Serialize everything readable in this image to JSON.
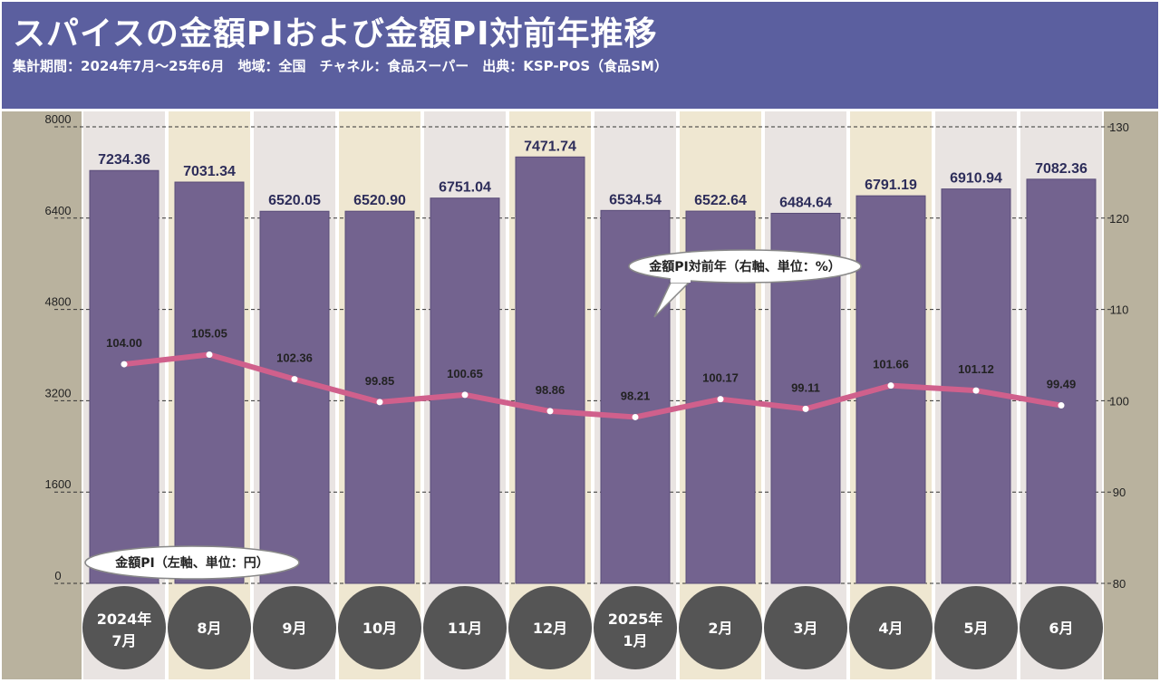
{
  "header": {
    "title": "スパイスの金額PIおよび金額PI対前年推移",
    "subtitle": "集計期間：2024年7月〜25年6月　地域：全国　チャネル：食品スーパー　出典：KSP-POS（食品SM）"
  },
  "colors": {
    "header_bg": "#5b5f9f",
    "bar": "#73638f",
    "bar_stroke": "#5a4c78",
    "line": "#d0608c",
    "band_light": "#e9e4e2",
    "band_warm": "#efe7d1",
    "side_panel": "#b9b29e",
    "circle": "#555555"
  },
  "chart_data": {
    "type": "bar+line",
    "categories": [
      {
        "line1": "2024年",
        "line2": "7月"
      },
      {
        "line1": "8月"
      },
      {
        "line1": "9月"
      },
      {
        "line1": "10月"
      },
      {
        "line1": "11月"
      },
      {
        "line1": "12月"
      },
      {
        "line1": "2025年",
        "line2": "1月"
      },
      {
        "line1": "2月"
      },
      {
        "line1": "3月"
      },
      {
        "line1": "4月"
      },
      {
        "line1": "5月"
      },
      {
        "line1": "6月"
      }
    ],
    "series": [
      {
        "name": "金額PI（左軸、単位：円）",
        "type": "bar",
        "axis": "left",
        "values": [
          7234.36,
          7031.34,
          6520.05,
          6520.9,
          6751.04,
          7471.74,
          6534.54,
          6522.64,
          6484.64,
          6791.19,
          6910.94,
          7082.36
        ],
        "labels": [
          "7234.36",
          "7031.34",
          "6520.05",
          "6520.90",
          "6751.04",
          "7471.74",
          "6534.54",
          "6522.64",
          "6484.64",
          "6791.19",
          "6910.94",
          "7082.36"
        ]
      },
      {
        "name": "金額PI対前年（右軸、単位：%）",
        "type": "line",
        "axis": "right",
        "values": [
          104.0,
          105.05,
          102.36,
          99.85,
          100.65,
          98.86,
          98.21,
          100.17,
          99.11,
          101.66,
          101.12,
          99.49
        ],
        "labels": [
          "104.00",
          "105.05",
          "102.36",
          "99.85",
          "100.65",
          "98.86",
          "98.21",
          "100.17",
          "99.11",
          "101.66",
          "101.12",
          "99.49"
        ]
      }
    ],
    "left_axis": {
      "min": 0,
      "max": 8000,
      "ticks": [
        0,
        1600,
        3200,
        4800,
        6400,
        8000
      ]
    },
    "right_axis": {
      "min": 80,
      "max": 130,
      "ticks": [
        80,
        90,
        100,
        110,
        120,
        130
      ]
    },
    "legend": {
      "bar": "金額PI（左軸、単位：円）",
      "line": "金額PI対前年（右軸、単位：%）"
    },
    "grid": true
  }
}
